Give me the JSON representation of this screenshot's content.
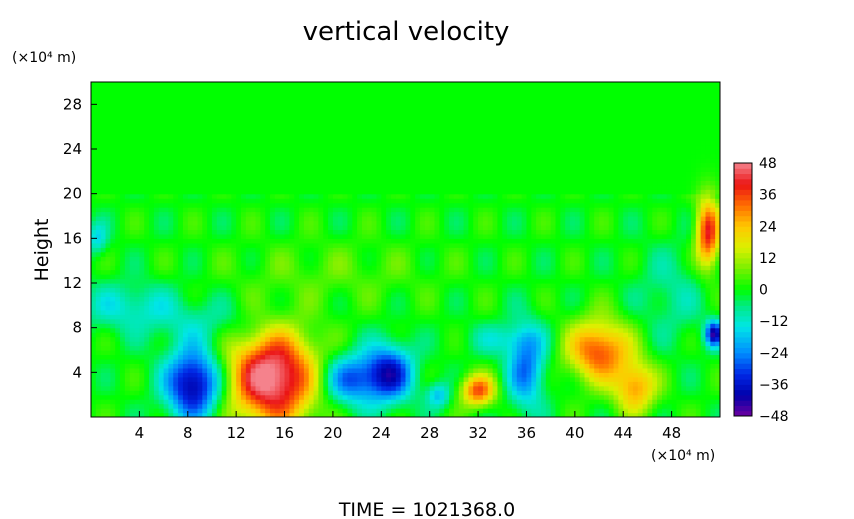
{
  "chart_data": {
    "type": "heatmap",
    "title": "vertical velocity",
    "ylabel": "Height",
    "xlabel": "",
    "x_unit": "(×10⁴ m)",
    "y_unit": "(×10⁴ m)",
    "xlim": [
      0,
      52
    ],
    "ylim": [
      0,
      30
    ],
    "xticks": [
      "4",
      "8",
      "12",
      "16",
      "20",
      "24",
      "28",
      "32",
      "36",
      "40",
      "44",
      "48"
    ],
    "yticks": [
      "4",
      "8",
      "12",
      "16",
      "20",
      "24",
      "28"
    ],
    "xtick_values": [
      4,
      8,
      12,
      16,
      20,
      24,
      28,
      32,
      36,
      40,
      44,
      48
    ],
    "ytick_values": [
      4,
      8,
      12,
      16,
      20,
      24,
      28
    ],
    "colorbar": {
      "ticks": [
        "48",
        "36",
        "24",
        "12",
        "0",
        "−12",
        "−24",
        "−36",
        "−48"
      ],
      "tick_values": [
        48,
        36,
        24,
        12,
        0,
        -12,
        -24,
        -36,
        -48
      ],
      "range": [
        -48,
        48
      ]
    },
    "features": [
      {
        "x": 8.5,
        "y": 3.0,
        "sx": 1.6,
        "sy": 2.2,
        "value": -44
      },
      {
        "x": 15.0,
        "y": 3.6,
        "sx": 2.6,
        "sy": 3.0,
        "value": 52
      },
      {
        "x": 21.5,
        "y": 3.4,
        "sx": 1.8,
        "sy": 1.6,
        "value": -28
      },
      {
        "x": 24.7,
        "y": 4.0,
        "sx": 1.4,
        "sy": 1.8,
        "value": -34
      },
      {
        "x": 28.7,
        "y": 2.0,
        "sx": 0.7,
        "sy": 0.8,
        "value": -18
      },
      {
        "x": 32.0,
        "y": 2.4,
        "sx": 1.0,
        "sy": 1.0,
        "value": 34
      },
      {
        "x": 36.0,
        "y": 4.5,
        "sx": 1.1,
        "sy": 2.6,
        "value": -26
      },
      {
        "x": 42.0,
        "y": 6.0,
        "sx": 1.8,
        "sy": 1.9,
        "value": 36
      },
      {
        "x": 45.0,
        "y": 2.7,
        "sx": 1.2,
        "sy": 1.6,
        "value": 28
      },
      {
        "x": 51.0,
        "y": 16.5,
        "sx": 0.7,
        "sy": 2.2,
        "value": 40
      },
      {
        "x": 51.5,
        "y": 7.5,
        "sx": 0.5,
        "sy": 0.8,
        "value": -40
      },
      {
        "x": 3.0,
        "y": 10.0,
        "sx": 3.0,
        "sy": 1.5,
        "value": -12
      },
      {
        "x": 10.0,
        "y": 8.5,
        "sx": 4.0,
        "sy": 1.5,
        "value": -8
      },
      {
        "x": 34.0,
        "y": 7.0,
        "sx": 2.0,
        "sy": 1.0,
        "value": -10
      },
      {
        "x": 0.5,
        "y": 16.0,
        "sx": 0.6,
        "sy": 1.0,
        "value": -15
      },
      {
        "x": 20.0,
        "y": 13.0,
        "sx": 6.0,
        "sy": 2.0,
        "value": 5
      },
      {
        "x": 48.0,
        "y": 11.0,
        "sx": 2.0,
        "sy": 3.0,
        "value": -8
      }
    ]
  },
  "footer": {
    "time_label": "TIME  =  1021368.0"
  }
}
